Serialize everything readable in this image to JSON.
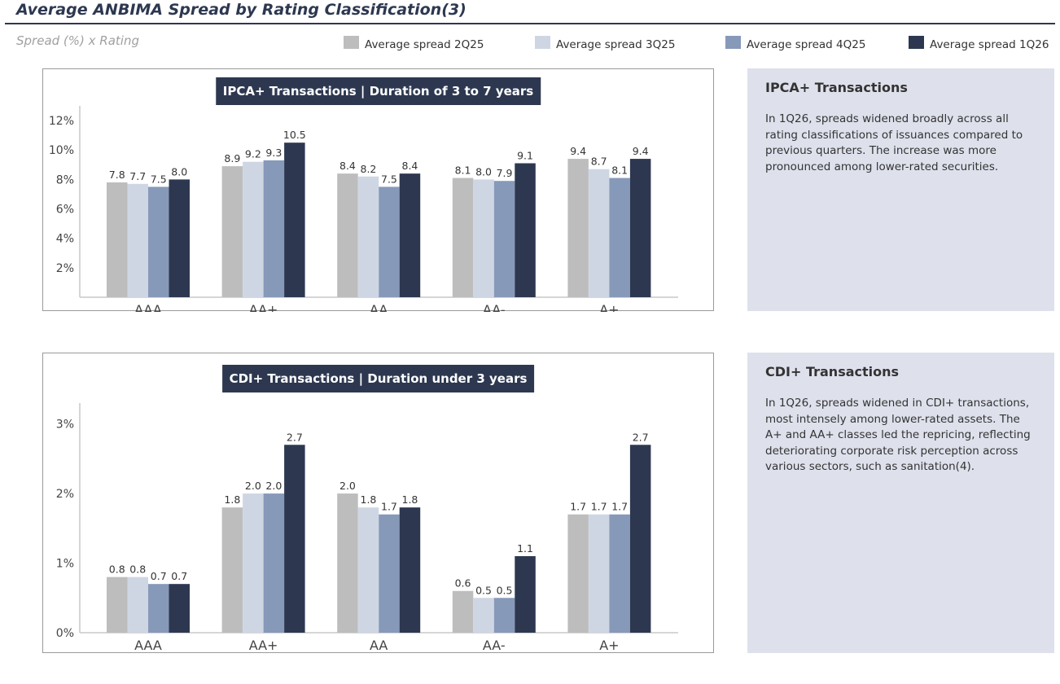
{
  "page": {
    "title": "Average ANBIMA Spread by Rating Classification(3)",
    "subtitle": "Spread (%) x Rating"
  },
  "legend": [
    {
      "label": "Average spread 2Q25",
      "color": "#bdbdbd"
    },
    {
      "label": "Average spread 3Q25",
      "color": "#cfd6e3"
    },
    {
      "label": "Average spread 4Q25",
      "color": "#8799b9"
    },
    {
      "label": "Average spread 1Q26",
      "color": "#2d3850"
    }
  ],
  "notes": [
    {
      "title": "IPCA+ Transactions",
      "text": "In 1Q26, spreads widened broadly across all rating classifications of issuances compared to previous quarters. The increase was more pronounced among lower-rated securities."
    },
    {
      "title": "CDI+ Transactions",
      "text": "In 1Q26, spreads widened in CDI+ transactions, most intensely among lower-rated assets. The A+ and AA+ classes led the repricing, reflecting deteriorating corporate risk perception across various sectors, such as sanitation(4)."
    }
  ],
  "chart_data": [
    {
      "type": "bar",
      "title": "IPCA+ Transactions | Duration of 3 to 7 years",
      "categories": [
        "AAA",
        "AA+",
        "AA",
        "AA-",
        "A+"
      ],
      "series": [
        {
          "name": "Average spread 2Q25",
          "values": [
            7.8,
            8.9,
            8.4,
            8.1,
            9.4
          ]
        },
        {
          "name": "Average spread 3Q25",
          "values": [
            7.7,
            9.2,
            8.2,
            8.0,
            8.7
          ]
        },
        {
          "name": "Average spread 4Q25",
          "values": [
            7.5,
            9.3,
            7.5,
            7.9,
            8.1
          ]
        },
        {
          "name": "Average spread 1Q26",
          "values": [
            8.0,
            10.5,
            8.4,
            9.1,
            9.4
          ]
        }
      ],
      "yticks": [
        2,
        4,
        6,
        8,
        10,
        12
      ],
      "ytick_labels": [
        "2%",
        "4%",
        "6%",
        "8%",
        "10%",
        "12%"
      ],
      "ylim": [
        0,
        13
      ],
      "legend": "top",
      "grid": false
    },
    {
      "type": "bar",
      "title": "CDI+ Transactions | Duration under 3 years",
      "categories": [
        "AAA",
        "AA+",
        "AA",
        "AA-",
        "A+"
      ],
      "series": [
        {
          "name": "Average spread 2Q25",
          "values": [
            0.8,
            1.8,
            2.0,
            0.6,
            1.7
          ]
        },
        {
          "name": "Average spread 3Q25",
          "values": [
            0.8,
            2.0,
            1.8,
            0.5,
            1.7
          ]
        },
        {
          "name": "Average spread 4Q25",
          "values": [
            0.7,
            2.0,
            1.7,
            0.5,
            1.7
          ]
        },
        {
          "name": "Average spread 1Q26",
          "values": [
            0.7,
            2.7,
            1.8,
            1.1,
            2.7
          ]
        }
      ],
      "yticks": [
        0,
        1,
        2,
        3
      ],
      "ytick_labels": [
        "0%",
        "1%",
        "2%",
        "3%"
      ],
      "ylim": [
        0,
        3.3
      ],
      "legend": "top",
      "grid": false
    }
  ]
}
